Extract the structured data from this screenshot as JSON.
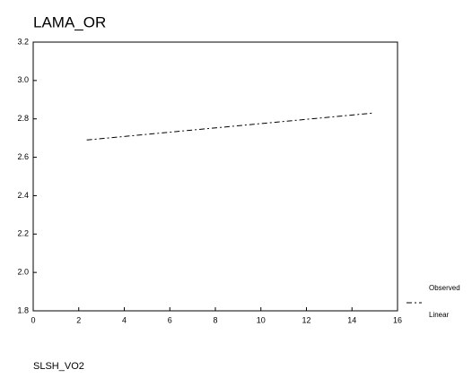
{
  "chart_data": {
    "type": "line",
    "title": "LAMA_OR",
    "x_label": "SLSH_VO2",
    "series": [
      {
        "name": "Linear",
        "color": "#000000",
        "x": [
          2.35,
          14.9
        ],
        "values": [
          2.69,
          2.83
        ]
      }
    ],
    "legend": [
      "Observed",
      "Linear"
    ],
    "xlim": [
      0,
      16
    ],
    "xticks": [
      0,
      2,
      4,
      6,
      8,
      10,
      12,
      14,
      16
    ],
    "ylim": [
      1.8,
      3.2
    ],
    "yticks": [
      1.8,
      {
        "value": 2,
        "label": "2.0"
      },
      2.2,
      2.4,
      2.6,
      2.8,
      {
        "value": 3,
        "label": "3.0"
      },
      3.2
    ]
  }
}
